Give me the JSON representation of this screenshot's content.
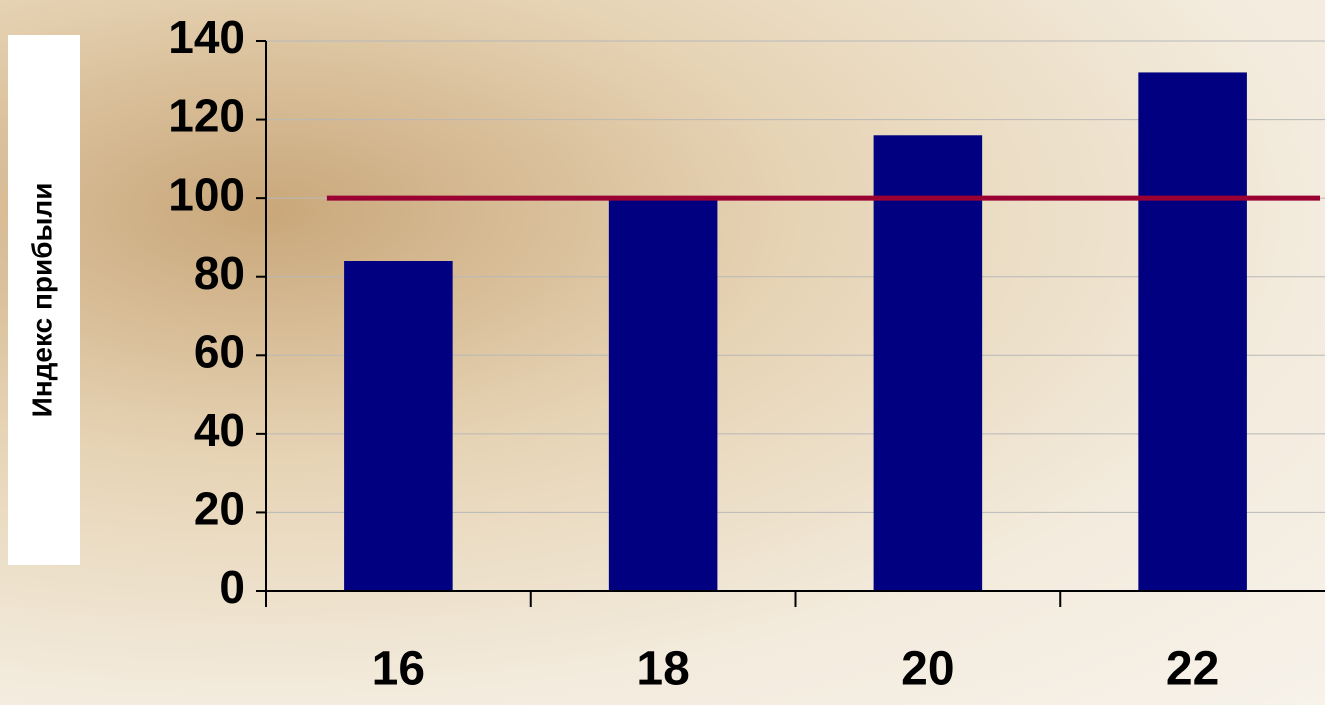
{
  "chart_data": {
    "type": "bar",
    "y_label": "Индекс прибыли",
    "categories": [
      "16",
      "18",
      "20",
      "22"
    ],
    "values": [
      84,
      100,
      116,
      132
    ],
    "color": "#000080",
    "ylim": [
      0,
      140
    ],
    "yticks": [
      0,
      20,
      40,
      60,
      80,
      100,
      120,
      140
    ],
    "grid": true,
    "reference_line": {
      "value": 100,
      "color": "#9b0032"
    }
  }
}
